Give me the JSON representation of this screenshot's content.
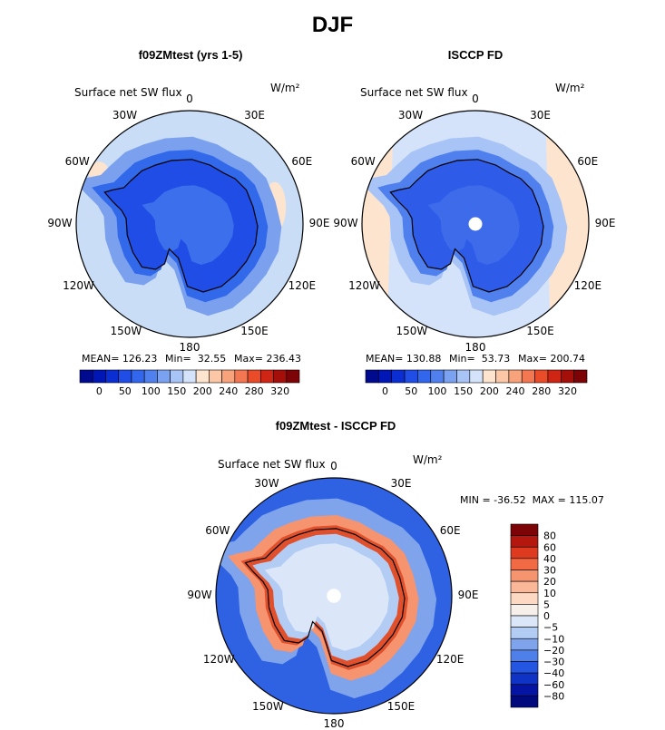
{
  "main_title": "DJF",
  "panels": [
    {
      "title": "f09ZMtest (yrs 1-5)",
      "field_label": "Surface net SW flux",
      "units": "W/m²",
      "lon_labels": {
        "n0": "0",
        "n30e": "30E",
        "n60e": "60E",
        "n90e": "90E",
        "n120e": "120E",
        "n150e": "150E",
        "n180": "180",
        "n150w": "150W",
        "n120w": "120W",
        "n90w": "90W",
        "n60w": "60W",
        "n30w": "30W"
      },
      "stats": {
        "mean": "MEAN= 126.23",
        "min": "Min=  32.55",
        "max": "Max= 236.43"
      }
    },
    {
      "title": "ISCCP FD",
      "field_label": "Surface net SW flux",
      "units": "W/m²",
      "lon_labels": {
        "n0": "0",
        "n30e": "30E",
        "n60e": "60E",
        "n90e": "90E",
        "n120e": "120E",
        "n150e": "150E",
        "n180": "180",
        "n150w": "150W",
        "n120w": "120W",
        "n90w": "90W",
        "n60w": "60W",
        "n30w": "30W"
      },
      "stats": {
        "mean": "MEAN= 130.88",
        "min": "Min=  53.73",
        "max": "Max= 200.74"
      }
    },
    {
      "title": "f09ZMtest - ISCCP FD",
      "field_label": "Surface net SW flux",
      "units": "W/m²",
      "lon_labels": {
        "n0": "0",
        "n30e": "30E",
        "n60e": "60E",
        "n90e": "90E",
        "n120e": "120E",
        "n150e": "150E",
        "n180": "180",
        "n150w": "150W",
        "n120w": "120W",
        "n90w": "90W",
        "n60w": "60W",
        "n30w": "30W"
      },
      "minmax": "MIN = -36.52  MAX = 115.07"
    }
  ],
  "colorbar_abs": {
    "labels": [
      "0",
      "50",
      "100",
      "150",
      "200",
      "240",
      "280",
      "320"
    ],
    "colors": [
      "#000a8e",
      "#0016b5",
      "#0a2ed1",
      "#1f4de6",
      "#3266ec",
      "#4f80ee",
      "#7aa2f0",
      "#a8c3f5",
      "#d4e3fa",
      "#fde4cf",
      "#fbc7a6",
      "#f8a37c",
      "#f37751",
      "#ea4c2a",
      "#cf2514",
      "#a50f0a",
      "#7c0306"
    ]
  },
  "colorbar_diff": {
    "labels": [
      "80",
      "60",
      "40",
      "30",
      "20",
      "10",
      "5",
      "0",
      "−5",
      "−10",
      "−20",
      "−30",
      "−40",
      "−60",
      "−80"
    ],
    "colors": [
      "#7c0306",
      "#b3170d",
      "#de3a1f",
      "#f26a44",
      "#f79470",
      "#fbb899",
      "#fdd8c2",
      "#f6efea",
      "#dbe6f9",
      "#b3ccf3",
      "#7fa4ec",
      "#4f7fe8",
      "#2556e1",
      "#0f33c5",
      "#0514a2",
      "#000a7c"
    ]
  },
  "map_fill": {
    "model": {
      "ocean": "#c9ddf7",
      "ring": "#7ba1ee",
      "inner": "#3268ea",
      "continent": "#1f4de6",
      "interior": "#3b6fec",
      "warm": "#fde4cf"
    },
    "obs": {
      "ocean": "#d4e3fa",
      "ring": "#a8c3f5",
      "inner": "#4f80ee",
      "continent": "#2e5ce8",
      "interior": "#3d6bea",
      "warm": "#fde4cf"
    },
    "diff": {
      "ocean": "#2e62e3",
      "mid": "#7fa4ec",
      "light": "#b3ccf3",
      "continent": "#dbe6f9",
      "warm1": "#f79470",
      "warm2": "#e0502c"
    }
  }
}
